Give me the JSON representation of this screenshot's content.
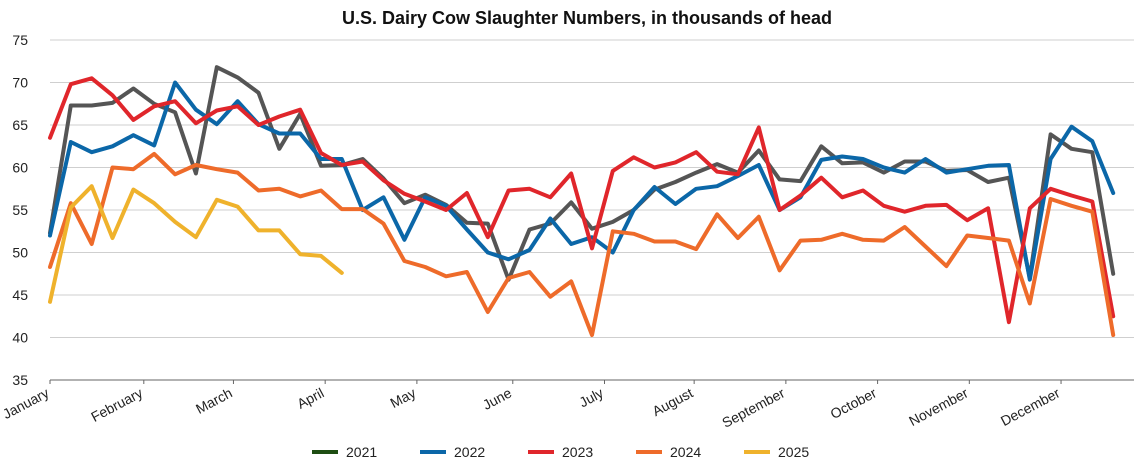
{
  "chart_data": {
    "type": "line",
    "title": "U.S. Dairy Cow Slaughter Numbers, in thousands of head",
    "xlabel": "",
    "ylabel": "",
    "ylim": [
      35,
      75
    ],
    "yticks": [
      35,
      40,
      45,
      50,
      55,
      60,
      65,
      70,
      75
    ],
    "xlim": [
      1,
      53
    ],
    "month_ticks": [
      {
        "label": "January",
        "week": 1
      },
      {
        "label": "February",
        "week": 5.5
      },
      {
        "label": "March",
        "week": 9.8
      },
      {
        "label": "April",
        "week": 14.2
      },
      {
        "label": "May",
        "week": 18.6
      },
      {
        "label": "June",
        "week": 23.2
      },
      {
        "label": "July",
        "week": 27.6
      },
      {
        "label": "August",
        "week": 31.9
      },
      {
        "label": "September",
        "week": 36.3
      },
      {
        "label": "October",
        "week": 40.7
      },
      {
        "label": "November",
        "week": 45.1
      },
      {
        "label": "December",
        "week": 49.5
      }
    ],
    "grid": "horizontal",
    "legend_position": "bottom",
    "series": [
      {
        "name": "2021",
        "color": "#555555",
        "legend_color": "#1e4d12",
        "values": [
          52.3,
          67.3,
          67.3,
          67.6,
          69.3,
          67.5,
          66.5,
          59.3,
          71.8,
          70.6,
          68.8,
          62.2,
          66.3,
          60.2,
          60.3,
          61.0,
          58.7,
          55.8,
          56.8,
          55.6,
          53.5,
          53.4,
          46.8,
          52.7,
          53.4,
          55.9,
          52.8,
          53.6,
          55.0,
          57.4,
          58.3,
          59.4,
          60.4,
          59.4,
          62.0,
          58.6,
          58.4,
          62.5,
          60.5,
          60.6,
          59.4,
          60.7,
          60.7,
          59.6,
          59.7,
          58.3,
          58.8,
          47.0,
          63.9,
          62.2,
          61.8,
          47.5
        ]
      },
      {
        "name": "2022",
        "color": "#0b67a8",
        "values": [
          52.0,
          63.0,
          61.8,
          62.5,
          63.8,
          62.6,
          70.0,
          66.8,
          65.1,
          67.8,
          65.1,
          64.0,
          64.0,
          61.0,
          61.0,
          55.0,
          56.5,
          51.5,
          56.5,
          55.5,
          52.7,
          50.0,
          49.2,
          50.3,
          54.0,
          51.0,
          51.8,
          50.0,
          55.0,
          57.7,
          55.7,
          57.5,
          57.8,
          59.0,
          60.3,
          55.0,
          56.5,
          60.9,
          61.3,
          61.0,
          60.0,
          59.4,
          61.0,
          59.4,
          59.8,
          60.2,
          60.3,
          46.8,
          61.0,
          64.8,
          63.1,
          57.0
        ]
      },
      {
        "name": "2023",
        "color": "#e0262b",
        "values": [
          63.5,
          69.8,
          70.5,
          68.5,
          65.6,
          67.2,
          67.8,
          65.2,
          66.7,
          67.2,
          65.0,
          66.0,
          66.8,
          61.7,
          60.3,
          60.7,
          58.5,
          56.9,
          56.0,
          55.0,
          57.0,
          51.8,
          57.3,
          57.5,
          56.5,
          59.3,
          50.5,
          59.6,
          61.2,
          60.0,
          60.6,
          61.8,
          59.5,
          59.2,
          64.7,
          55.0,
          56.7,
          58.8,
          56.5,
          57.3,
          55.5,
          54.8,
          55.5,
          55.6,
          53.8,
          55.2,
          41.8,
          55.2,
          57.5,
          56.7,
          56.0,
          42.5
        ]
      },
      {
        "name": "2024",
        "color": "#ee6b2a",
        "values": [
          48.3,
          55.8,
          51.0,
          60.0,
          59.8,
          61.6,
          59.2,
          60.3,
          59.8,
          59.4,
          57.3,
          57.5,
          56.6,
          57.3,
          55.1,
          55.1,
          53.4,
          49.0,
          48.3,
          47.2,
          47.7,
          43.0,
          47.0,
          47.7,
          44.8,
          46.6,
          40.3,
          52.5,
          52.2,
          51.3,
          51.3,
          50.4,
          54.5,
          51.7,
          54.2,
          47.9,
          51.4,
          51.5,
          52.2,
          51.5,
          51.4,
          53.0,
          50.7,
          48.4,
          52.0,
          51.7,
          51.4,
          44.0,
          56.3,
          55.5,
          54.8,
          40.3
        ]
      },
      {
        "name": "2025",
        "color": "#efb22c",
        "values": [
          44.2,
          55.3,
          57.8,
          51.7,
          57.4,
          55.8,
          53.6,
          51.8,
          56.2,
          55.4,
          52.6,
          52.6,
          49.8,
          49.6,
          47.6
        ]
      }
    ]
  }
}
